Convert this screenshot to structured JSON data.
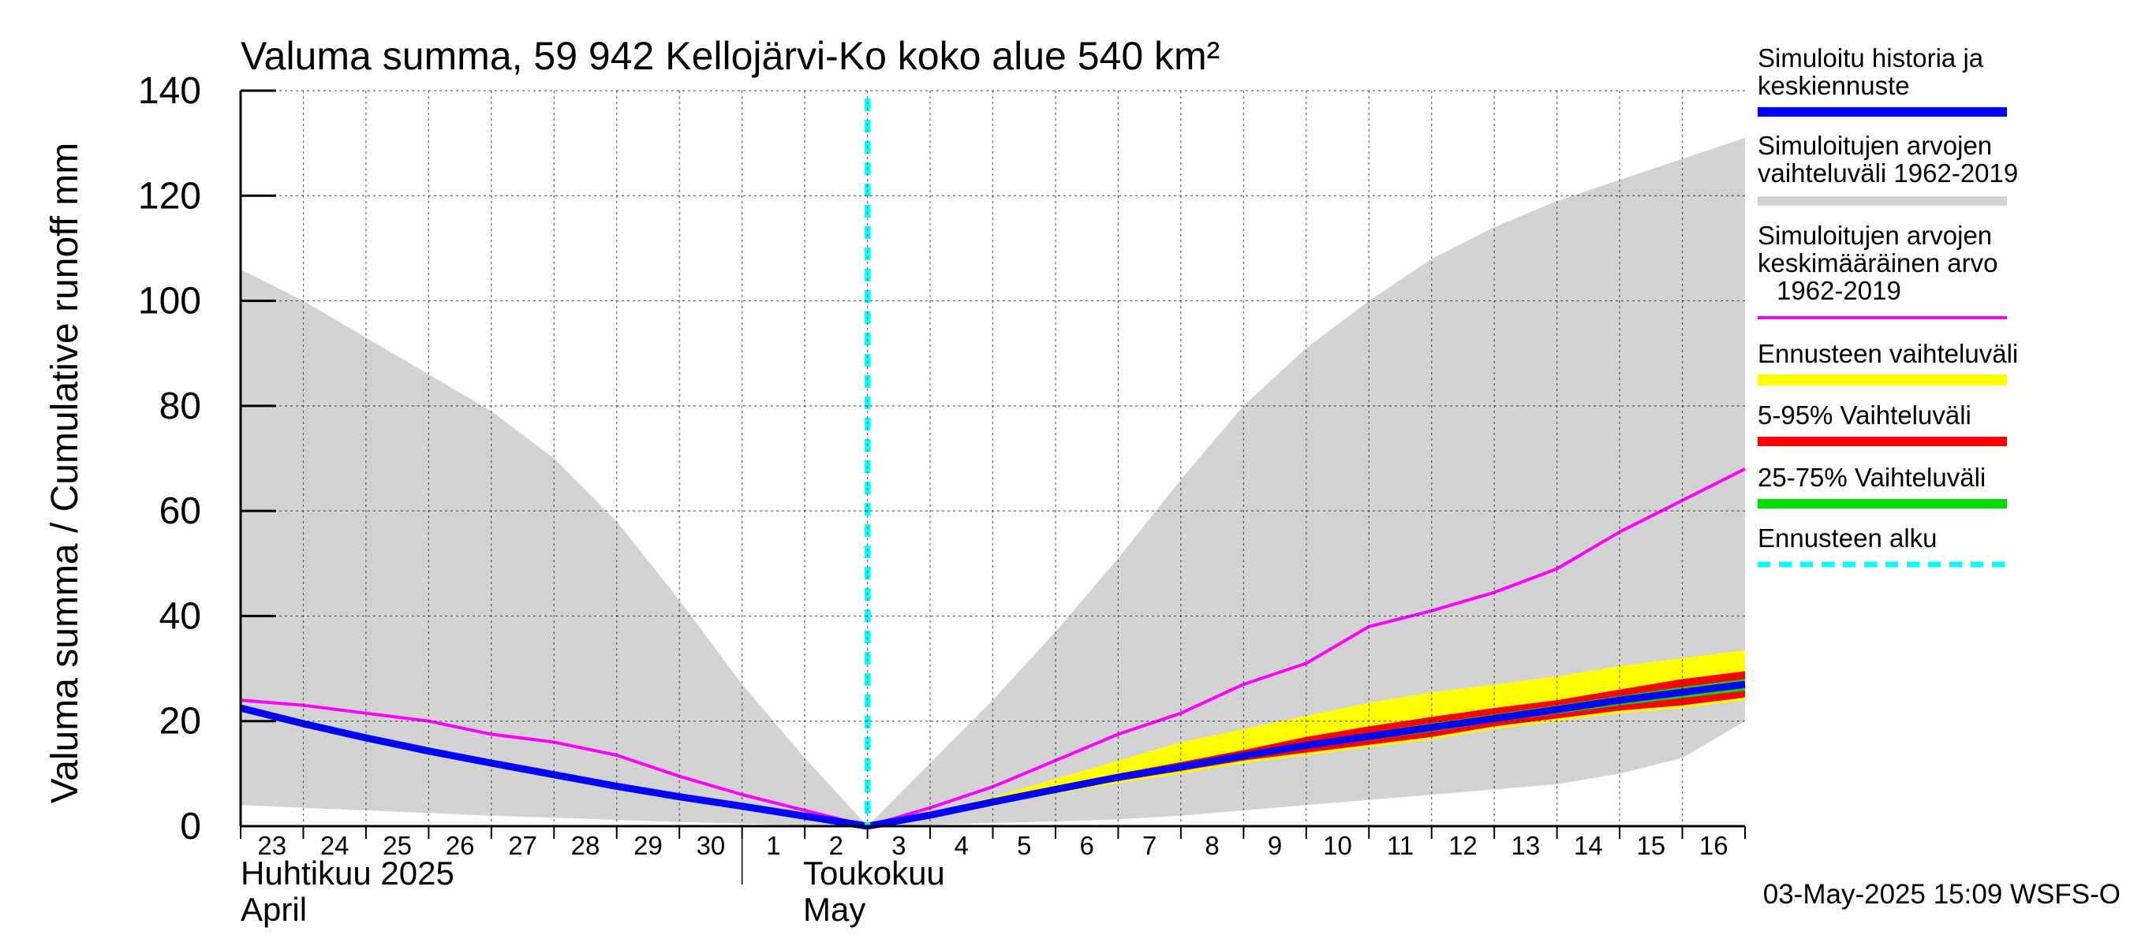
{
  "chart_data": {
    "type": "area",
    "title": "Valuma summa, 59 942 Kellojärvi-Ko koko alue 540 km²",
    "ylabel": "Valuma summa / Cumulative runoff    mm",
    "ylim": [
      0,
      140
    ],
    "yticks": [
      "0",
      "20",
      "40",
      "60",
      "80",
      "100",
      "120",
      "140"
    ],
    "ytick_values": [
      0,
      20,
      40,
      60,
      80,
      100,
      120,
      140
    ],
    "x_range": [
      0,
      24
    ],
    "x_tick_labels": [
      "23",
      "24",
      "25",
      "26",
      "27",
      "28",
      "29",
      "30",
      "1",
      "2",
      "3",
      "4",
      "5",
      "6",
      "7",
      "8",
      "9",
      "10",
      "11",
      "12",
      "13",
      "14",
      "15",
      "16"
    ],
    "month_labels": [
      {
        "fi": "Huhtikuu  2025",
        "en": "April"
      },
      {
        "fi": "Toukokuu",
        "en": "May"
      }
    ],
    "month_boundary_x": 8,
    "forecast_start_x": 10,
    "grid": true,
    "legend_position": "right",
    "legend": [
      {
        "label": "Simuloitu historia ja keskiennuste",
        "color": "#0000ff",
        "style": "thick"
      },
      {
        "label": "Simuloitujen arvojen vaihteluväli 1962-2019",
        "color": "#d3d3d3",
        "style": "thick"
      },
      {
        "label": "Simuloitujen arvojen keskimääräinen arvo 1962-2019",
        "color": "#ff00ff",
        "style": "thin"
      },
      {
        "label": "Ennusteen vaihteluväli",
        "color": "#ffff00",
        "style": "thick"
      },
      {
        "label": "5-95% Vaihteluväli",
        "color": "#ff0000",
        "style": "thick"
      },
      {
        "label": "25-75% Vaihteluväli",
        "color": "#00dd00",
        "style": "thick"
      },
      {
        "label": "Ennusteen alku",
        "color": "#00ffff",
        "style": "dashed"
      }
    ],
    "series": [
      {
        "name": "Simuloitujen arvojen vaihteluväli 1962-2019 (upper)",
        "x": [
          0,
          1,
          2,
          3,
          4,
          5,
          6,
          7,
          8,
          9,
          10,
          11,
          12,
          13,
          14,
          15,
          16,
          17,
          18,
          19,
          20,
          21,
          22,
          23,
          24
        ],
        "values": [
          106,
          100,
          93,
          86,
          79,
          70,
          58,
          43,
          27,
          13,
          0,
          12,
          24,
          37,
          51,
          66,
          80,
          91,
          100,
          108,
          114,
          119,
          123,
          127,
          131
        ]
      },
      {
        "name": "Simuloitujen arvojen vaihteluväli 1962-2019 (lower)",
        "x": [
          0,
          1,
          2,
          3,
          4,
          5,
          6,
          7,
          8,
          9,
          10,
          11,
          12,
          13,
          14,
          15,
          16,
          17,
          18,
          19,
          20,
          21,
          22,
          23,
          24
        ],
        "values": [
          4,
          3.5,
          3,
          2.5,
          2,
          1.6,
          1.2,
          0.8,
          0.5,
          0.2,
          0,
          0.3,
          0.6,
          0.9,
          1.3,
          2,
          3,
          4,
          5,
          6,
          7,
          8,
          10,
          13,
          20
        ]
      },
      {
        "name": "Simuloitujen arvojen keskimääräinen arvo 1962-2019",
        "x": [
          0,
          1,
          2,
          3,
          4,
          5,
          6,
          7,
          8,
          9,
          10,
          11,
          12,
          13,
          14,
          15,
          16,
          17,
          18,
          19,
          20,
          21,
          22,
          23,
          24
        ],
        "values": [
          24,
          23,
          21.5,
          20,
          17.5,
          16,
          13.5,
          9.5,
          6,
          3,
          0,
          3.5,
          7.5,
          12.5,
          17.5,
          21.5,
          27,
          31,
          38,
          41,
          44.5,
          49,
          56,
          62,
          68
        ]
      },
      {
        "name": "Ennusteen vaihteluväli (upper)",
        "x": [
          10,
          11,
          12,
          13,
          14,
          15,
          16,
          17,
          18,
          19,
          20,
          21,
          22,
          23,
          24
        ],
        "values": [
          0,
          2.5,
          5.5,
          9,
          12.5,
          16,
          18.5,
          21,
          23.5,
          25.5,
          27,
          28.5,
          30.5,
          32,
          33.5
        ]
      },
      {
        "name": "Ennusteen vaihteluväli (lower)",
        "x": [
          10,
          11,
          12,
          13,
          14,
          15,
          16,
          17,
          18,
          19,
          20,
          21,
          22,
          23,
          24
        ],
        "values": [
          0,
          1.8,
          4,
          6.2,
          8.2,
          10,
          12,
          13.5,
          15,
          16.5,
          18.5,
          20,
          21.5,
          22.5,
          24
        ]
      },
      {
        "name": "5-95% Vaihteluväli (upper)",
        "x": [
          10,
          11,
          12,
          13,
          14,
          15,
          16,
          17,
          18,
          19,
          20,
          21,
          22,
          23,
          24
        ],
        "values": [
          0,
          2.2,
          5,
          7.6,
          10,
          12.2,
          14.5,
          17,
          19,
          20.8,
          22.5,
          24,
          26,
          28,
          29.5
        ]
      },
      {
        "name": "5-95% Vaihteluväli (lower)",
        "x": [
          10,
          11,
          12,
          13,
          14,
          15,
          16,
          17,
          18,
          19,
          20,
          21,
          22,
          23,
          24
        ],
        "values": [
          0,
          1.9,
          4.2,
          6.5,
          8.6,
          10.5,
          12.5,
          14,
          15.5,
          17,
          19,
          20.5,
          22,
          23,
          24.5
        ]
      },
      {
        "name": "25-75% Vaihteluväli (upper)",
        "x": [
          10,
          11,
          12,
          13,
          14,
          15,
          16,
          17,
          18,
          19,
          20,
          21,
          22,
          23,
          24
        ],
        "values": [
          0,
          2.1,
          4.7,
          7.2,
          9.5,
          11.6,
          13.8,
          16,
          17.8,
          19.6,
          21.3,
          23,
          24.8,
          26.5,
          28
        ]
      },
      {
        "name": "25-75% Vaihteluväli (lower)",
        "x": [
          10,
          11,
          12,
          13,
          14,
          15,
          16,
          17,
          18,
          19,
          20,
          21,
          22,
          23,
          24
        ],
        "values": [
          0,
          2,
          4.4,
          6.8,
          9,
          11,
          13,
          14.8,
          16.4,
          18,
          19.8,
          21.4,
          23,
          24.4,
          25.8
        ]
      },
      {
        "name": "Simuloitu historia ja keskiennuste",
        "x": [
          0,
          1,
          2,
          3,
          4,
          5,
          6,
          7,
          8,
          9,
          10,
          11,
          12,
          13,
          14,
          15,
          16,
          17,
          18,
          19,
          20,
          21,
          22,
          23,
          24
        ],
        "values": [
          22.5,
          19.5,
          16.8,
          14.3,
          12,
          9.8,
          7.6,
          5.6,
          3.8,
          1.9,
          0,
          2.1,
          4.6,
          7,
          9.3,
          11.3,
          13.4,
          15.4,
          17.1,
          18.8,
          20.5,
          22.2,
          24,
          25.5,
          27
        ]
      }
    ]
  },
  "footer": {
    "timestamp": "03-May-2025 15:09 WSFS-O"
  }
}
